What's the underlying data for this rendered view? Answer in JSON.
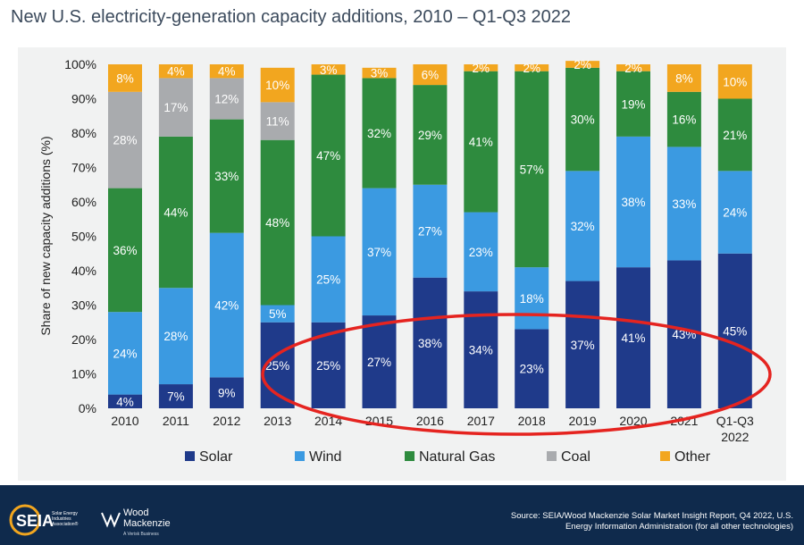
{
  "title": "New U.S. electricity-generation capacity additions, 2010 – Q1-Q3 2022",
  "chart_data": {
    "type": "bar",
    "stacked": true,
    "title": "New U.S. electricity-generation capacity additions, 2010 – Q1-Q3 2022",
    "ylabel": "Share of new capacity additions (%)",
    "xlabel": "",
    "ylim": [
      0,
      100
    ],
    "yticks": [
      "0%",
      "10%",
      "20%",
      "30%",
      "40%",
      "50%",
      "60%",
      "70%",
      "80%",
      "90%",
      "100%"
    ],
    "categories": [
      "2010",
      "2011",
      "2012",
      "2013",
      "2014",
      "2015",
      "2016",
      "2017",
      "2018",
      "2019",
      "2020",
      "2021",
      "Q1-Q3 2022"
    ],
    "series": [
      {
        "name": "Solar",
        "color": "#1f3a8a",
        "values": [
          4,
          7,
          9,
          25,
          25,
          27,
          38,
          34,
          23,
          37,
          41,
          43,
          45
        ]
      },
      {
        "name": "Wind",
        "color": "#3b9ae1",
        "values": [
          24,
          28,
          42,
          5,
          25,
          37,
          27,
          23,
          18,
          32,
          38,
          33,
          24
        ]
      },
      {
        "name": "Natural Gas",
        "color": "#2e8b3e",
        "values": [
          36,
          44,
          33,
          48,
          47,
          32,
          29,
          41,
          57,
          30,
          19,
          16,
          21
        ]
      },
      {
        "name": "Coal",
        "color": "#a9abae",
        "values": [
          28,
          17,
          12,
          11,
          0,
          0,
          0,
          0,
          0,
          0,
          0,
          0,
          0
        ]
      },
      {
        "name": "Other",
        "color": "#f2a61f",
        "values": [
          8,
          4,
          4,
          10,
          3,
          3,
          6,
          2,
          2,
          2,
          2,
          8,
          10
        ]
      }
    ],
    "legend_position": "bottom",
    "grid": false,
    "annotation": "red ellipse around solar shares 2013–2022"
  },
  "footer": {
    "logo_left": "SEIA",
    "logo_left_sub": "Solar Energy Industries Association",
    "logo_right": "Wood Mackenzie",
    "logo_right_sub": "A Verisk Business",
    "source_line1": "Source: SEIA/Wood Mackenzie Solar Market Insight Report, Q4 2022, U.S.",
    "source_line2": "Energy Information Administration (for all other technologies)"
  }
}
